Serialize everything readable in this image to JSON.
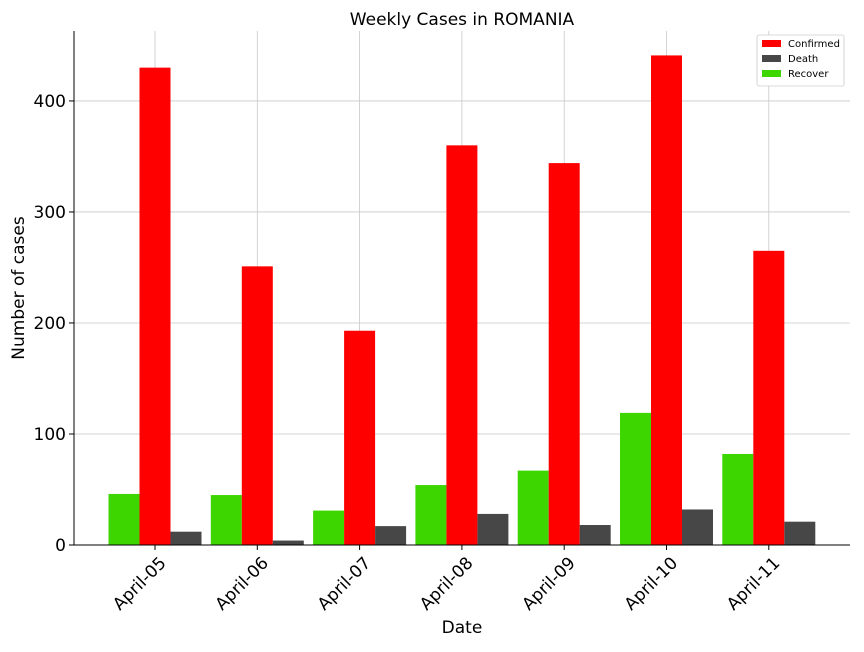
{
  "chart_data": {
    "type": "bar",
    "title": "Weekly Cases in ROMANIA",
    "xlabel": "Date",
    "ylabel": "Number of cases",
    "categories": [
      "April-05",
      "April-06",
      "April-07",
      "April-08",
      "April-09",
      "April-10",
      "April-11"
    ],
    "series": [
      {
        "name": "Recover",
        "color": "#3dd600",
        "values": [
          46,
          45,
          31,
          54,
          67,
          119,
          82
        ]
      },
      {
        "name": "Confirmed",
        "color": "#ff0000",
        "values": [
          430,
          251,
          193,
          360,
          344,
          441,
          265
        ]
      },
      {
        "name": "Death",
        "color": "#474747",
        "values": [
          12,
          4,
          17,
          28,
          18,
          32,
          21
        ]
      }
    ],
    "legend_order": [
      "Confirmed",
      "Death",
      "Recover"
    ],
    "legend_position": "top-right",
    "ylim": [
      0,
      463
    ],
    "yticks": [
      0,
      100,
      200,
      300,
      400
    ],
    "grid": true
  }
}
